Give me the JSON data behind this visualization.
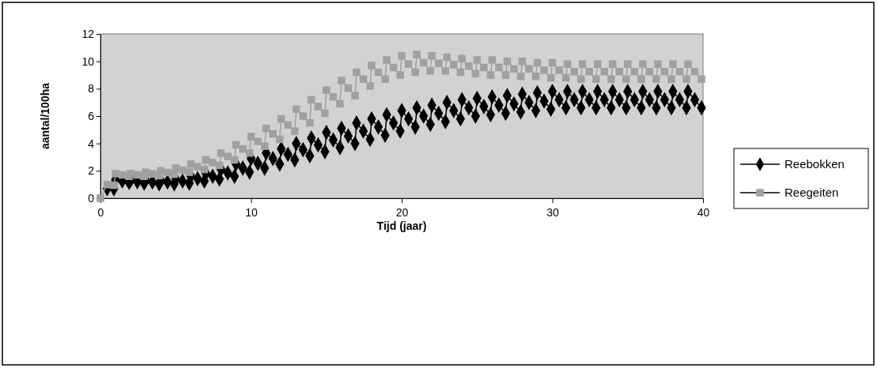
{
  "chart_data": {
    "type": "line",
    "xlabel": "Tijd (jaar)",
    "ylabel": "aantal/100ha",
    "xlim": [
      0,
      40
    ],
    "xticks": [
      0,
      10,
      20,
      30,
      40
    ],
    "ylim": [
      0,
      12
    ],
    "yticks": [
      0,
      2,
      4,
      6,
      8,
      10,
      12
    ],
    "grid": false,
    "legend": "right",
    "line_style": "solid",
    "x": [
      0,
      0.45,
      0.9,
      1,
      1.45,
      1.9,
      2,
      2.45,
      2.9,
      3,
      3.45,
      3.9,
      4,
      4.45,
      4.9,
      5,
      5.45,
      5.9,
      6,
      6.45,
      6.9,
      7,
      7.45,
      7.9,
      8,
      8.45,
      8.9,
      9,
      9.45,
      9.9,
      10,
      10.45,
      10.9,
      11,
      11.45,
      11.9,
      12,
      12.45,
      12.9,
      13,
      13.45,
      13.9,
      14,
      14.45,
      14.9,
      15,
      15.45,
      15.9,
      16,
      16.45,
      16.9,
      17,
      17.45,
      17.9,
      18,
      18.45,
      18.9,
      19,
      19.45,
      19.9,
      20,
      20.45,
      20.9,
      21,
      21.45,
      21.9,
      22,
      22.45,
      22.9,
      23,
      23.45,
      23.9,
      24,
      24.45,
      24.9,
      25,
      25.45,
      25.9,
      26,
      26.45,
      26.9,
      27,
      27.45,
      27.9,
      28,
      28.45,
      28.9,
      29,
      29.45,
      29.9,
      30,
      30.45,
      30.9,
      31,
      31.45,
      31.9,
      32,
      32.45,
      32.9,
      33,
      33.45,
      33.9,
      34,
      34.45,
      34.9,
      35,
      35.45,
      35.9,
      36,
      36.45,
      36.9,
      37,
      37.45,
      37.9,
      38,
      38.45,
      38.9,
      39,
      39.45,
      39.9
    ],
    "series": [
      {
        "name": "Reebokken",
        "color": "#000000",
        "marker": "diamond",
        "values": [
          null,
          0.7,
          0.7,
          1.35,
          1.25,
          1.15,
          1.3,
          1.2,
          1.1,
          1.3,
          1.18,
          1.05,
          1.3,
          1.18,
          1.05,
          1.4,
          1.25,
          1.1,
          1.6,
          1.43,
          1.25,
          1.8,
          1.6,
          1.4,
          2.1,
          1.85,
          1.6,
          2.5,
          2.2,
          1.9,
          2.9,
          2.55,
          2.2,
          3.3,
          2.9,
          2.5,
          3.6,
          3.2,
          2.8,
          4.0,
          3.55,
          3.1,
          4.4,
          3.9,
          3.4,
          4.8,
          4.25,
          3.7,
          5.1,
          4.55,
          4.0,
          5.5,
          4.9,
          4.3,
          5.8,
          5.2,
          4.6,
          6.1,
          5.5,
          4.9,
          6.4,
          5.8,
          5.2,
          6.6,
          6.0,
          5.4,
          6.8,
          6.2,
          5.6,
          7.0,
          6.4,
          5.8,
          7.2,
          6.6,
          6.0,
          7.3,
          6.7,
          6.1,
          7.4,
          6.8,
          6.2,
          7.5,
          6.9,
          6.3,
          7.6,
          7.0,
          6.4,
          7.7,
          7.1,
          6.5,
          7.8,
          7.2,
          6.6,
          7.8,
          7.2,
          6.6,
          7.8,
          7.2,
          6.6,
          7.8,
          7.2,
          6.6,
          7.8,
          7.2,
          6.6,
          7.8,
          7.2,
          6.6,
          7.8,
          7.2,
          6.6,
          7.8,
          7.2,
          6.6,
          7.8,
          7.2,
          6.6,
          7.8,
          7.2,
          6.6
        ]
      },
      {
        "name": "Reegeiten",
        "color": "#a0a0a0",
        "marker": "square",
        "values": [
          0,
          1.0,
          0.95,
          1.8,
          1.7,
          1.6,
          1.8,
          1.7,
          1.6,
          1.9,
          1.78,
          1.65,
          2.0,
          1.88,
          1.75,
          2.2,
          2.05,
          1.9,
          2.5,
          2.3,
          2.1,
          2.8,
          2.6,
          2.4,
          3.3,
          3.05,
          2.8,
          3.9,
          3.6,
          3.3,
          4.5,
          4.15,
          3.8,
          5.1,
          4.7,
          4.3,
          5.8,
          5.35,
          4.9,
          6.5,
          6.0,
          5.5,
          7.2,
          6.7,
          6.2,
          7.9,
          7.4,
          6.9,
          8.6,
          8.05,
          7.5,
          9.2,
          8.7,
          8.2,
          9.7,
          9.2,
          8.7,
          10.1,
          9.55,
          9.0,
          10.4,
          9.8,
          9.2,
          10.5,
          9.9,
          9.3,
          10.4,
          9.85,
          9.3,
          10.3,
          9.75,
          9.2,
          10.2,
          9.65,
          9.1,
          10.1,
          9.55,
          9.0,
          10.1,
          9.55,
          9.0,
          10.0,
          9.45,
          8.9,
          10.0,
          9.45,
          8.9,
          9.9,
          9.35,
          8.8,
          9.9,
          9.35,
          8.8,
          9.8,
          9.25,
          8.7,
          9.8,
          9.25,
          8.7,
          9.8,
          9.25,
          8.7,
          9.8,
          9.25,
          8.7,
          9.8,
          9.25,
          8.7,
          9.8,
          9.25,
          8.7,
          9.8,
          9.25,
          8.7,
          9.8,
          9.25,
          8.7,
          9.8,
          9.25,
          8.7
        ]
      }
    ]
  }
}
